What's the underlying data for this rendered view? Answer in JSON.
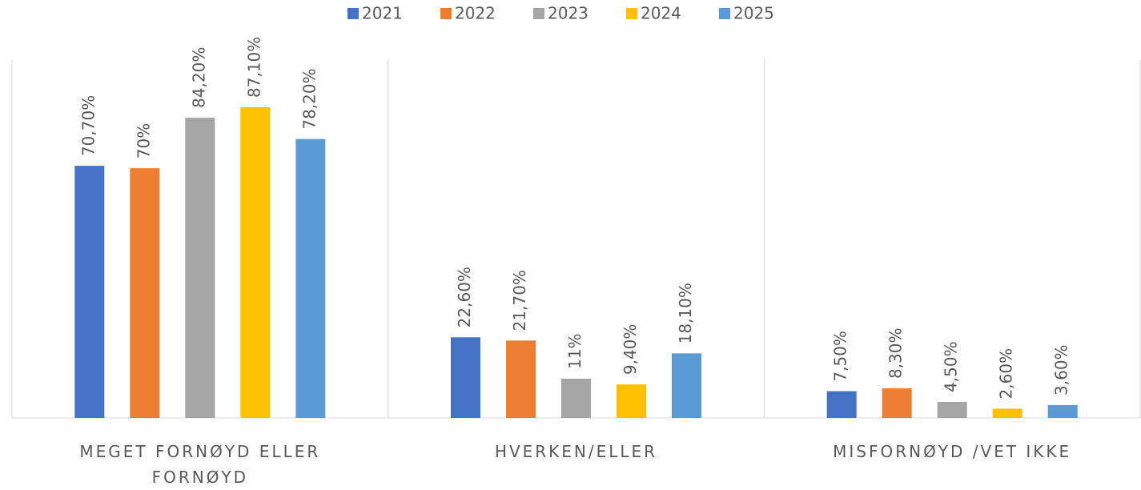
{
  "chart_data": {
    "type": "bar",
    "categories": [
      "MEGET FORNØYD ELLER FORNØYD",
      "HVERKEN/ELLER",
      "MISFORNØYD /VET IKKE"
    ],
    "legend": "top",
    "series": [
      {
        "name": "2021",
        "color": "#4472c4",
        "values": [
          70.7,
          22.6,
          7.5
        ],
        "value_labels": [
          "70,70%",
          "22,60%",
          "7,50%"
        ]
      },
      {
        "name": "2022",
        "color": "#ed7d31",
        "values": [
          70,
          21.7,
          8.3
        ],
        "value_labels": [
          "70%",
          "21,70%",
          "8,30%"
        ]
      },
      {
        "name": "2023",
        "color": "#a5a5a5",
        "values": [
          84.2,
          11,
          4.5
        ],
        "value_labels": [
          "84,20%",
          "11%",
          "4,50%"
        ]
      },
      {
        "name": "2024",
        "color": "#ffc000",
        "values": [
          87.1,
          9.4,
          2.6
        ],
        "value_labels": [
          "87,10%",
          "9,40%",
          "2,60%"
        ]
      },
      {
        "name": "2025",
        "color": "#5b9bd5",
        "values": [
          78.2,
          18.1,
          3.6
        ],
        "value_labels": [
          "78,20%",
          "18,10%",
          "3,60%"
        ]
      }
    ]
  }
}
